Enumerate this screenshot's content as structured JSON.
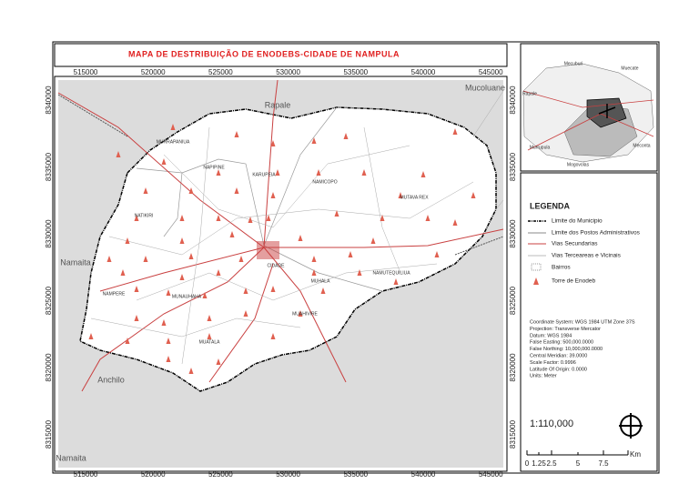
{
  "title": "MAPA DE DESTRIBUIÇÃO DE ENODEBS-CIDADE DE NAMPULA",
  "x_ticks": [
    "515000",
    "520000",
    "525000",
    "530000",
    "535000",
    "540000",
    "545000"
  ],
  "y_ticks": [
    "8340000",
    "8335000",
    "8330000",
    "8325000",
    "8320000",
    "8315000"
  ],
  "places": [
    "Rapale",
    "Mucoluane",
    "Namaita",
    "Anchilo",
    "Namaita"
  ],
  "bairros": [
    "MURRAPANIUA",
    "NAPIPINE",
    "KARUPEIA",
    "NAMICOPO",
    "MUTAVA REX",
    "NATIKIRI",
    "MUHALA",
    "NAMUTEQUILIUA",
    "NAMPERE",
    "MUNAUHAHA",
    "MUAHIVIRE",
    "MUATALA",
    "CIDADE"
  ],
  "inset": {
    "labels": [
      "Mecuburi",
      "Muecate",
      "Rapale",
      "Meconta",
      "Murrupula",
      "Mogovolas"
    ]
  },
  "legend": {
    "title": "LEGENDA",
    "items": [
      "Limite do Municipio",
      "Limite dos Postos Administrativos",
      "Vias Secundarias",
      "Vias Terceareas e Vicinais",
      "Bairros",
      "Torre de Enodeb"
    ]
  },
  "projection": [
    "Coordinate System: WGS 1984 UTM Zone 37S",
    "Projection: Transverse Mercator",
    "Datum: WGS 1984",
    "False Easting: 500,000.0000",
    "False Northing: 10,000,000.0000",
    "Central Meridian: 39.0000",
    "Scale Factor: 0.9996",
    "Latitude Of Origin: 0.0000",
    "Units: Meter"
  ],
  "scale": "1:110,000",
  "scale_bar": {
    "labels": [
      "0",
      "1.25",
      "2.5",
      "5",
      "7.5"
    ],
    "unit": "Km"
  }
}
